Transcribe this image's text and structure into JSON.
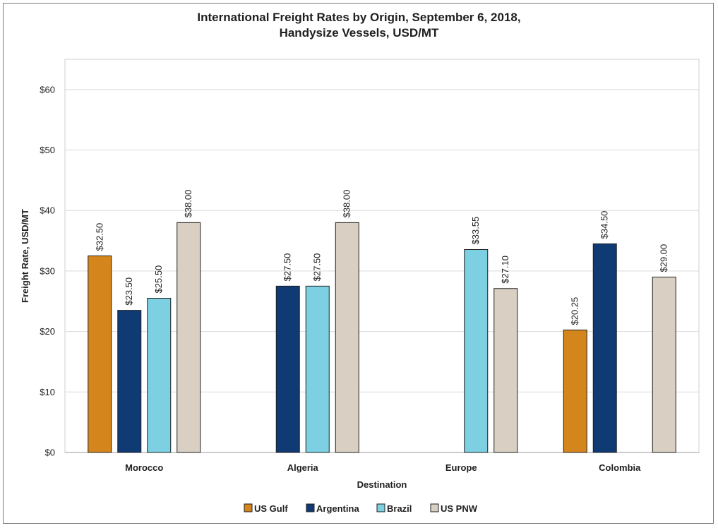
{
  "chart_data": {
    "type": "bar",
    "title_line1": "International Freight Rates by Origin, September 6, 2018,",
    "title_line2": "Handysize Vessels, USD/MT",
    "xlabel": "Destination",
    "ylabel": "Freight Rate, USD/MT",
    "ylim": [
      0,
      65
    ],
    "yticks": [
      0,
      10,
      20,
      30,
      40,
      50,
      60
    ],
    "ytick_labels": [
      "$0",
      "$10",
      "$20",
      "$30",
      "$40",
      "$50",
      "$60"
    ],
    "grid": true,
    "legend_position": "bottom",
    "categories": [
      "Morocco",
      "Algeria",
      "Europe",
      "Colombia"
    ],
    "series": [
      {
        "name": "US Gulf",
        "color": "#d4851b",
        "values": [
          32.5,
          null,
          null,
          20.25
        ],
        "labels": [
          "$32.50",
          null,
          null,
          "$20.25"
        ]
      },
      {
        "name": "Argentina",
        "color": "#0f3a74",
        "values": [
          23.5,
          27.5,
          null,
          34.5
        ],
        "labels": [
          "$23.50",
          "$27.50",
          null,
          "$34.50"
        ]
      },
      {
        "name": "Brazil",
        "color": "#7dd0e2",
        "values": [
          25.5,
          27.5,
          33.55,
          null
        ],
        "labels": [
          "$25.50",
          "$27.50",
          "$33.55",
          null
        ]
      },
      {
        "name": "US PNW",
        "color": "#d9d0c3",
        "values": [
          38.0,
          38.0,
          27.1,
          29.0
        ],
        "labels": [
          "$38.00",
          "$38.00",
          "$27.10",
          "$29.00"
        ]
      }
    ]
  }
}
